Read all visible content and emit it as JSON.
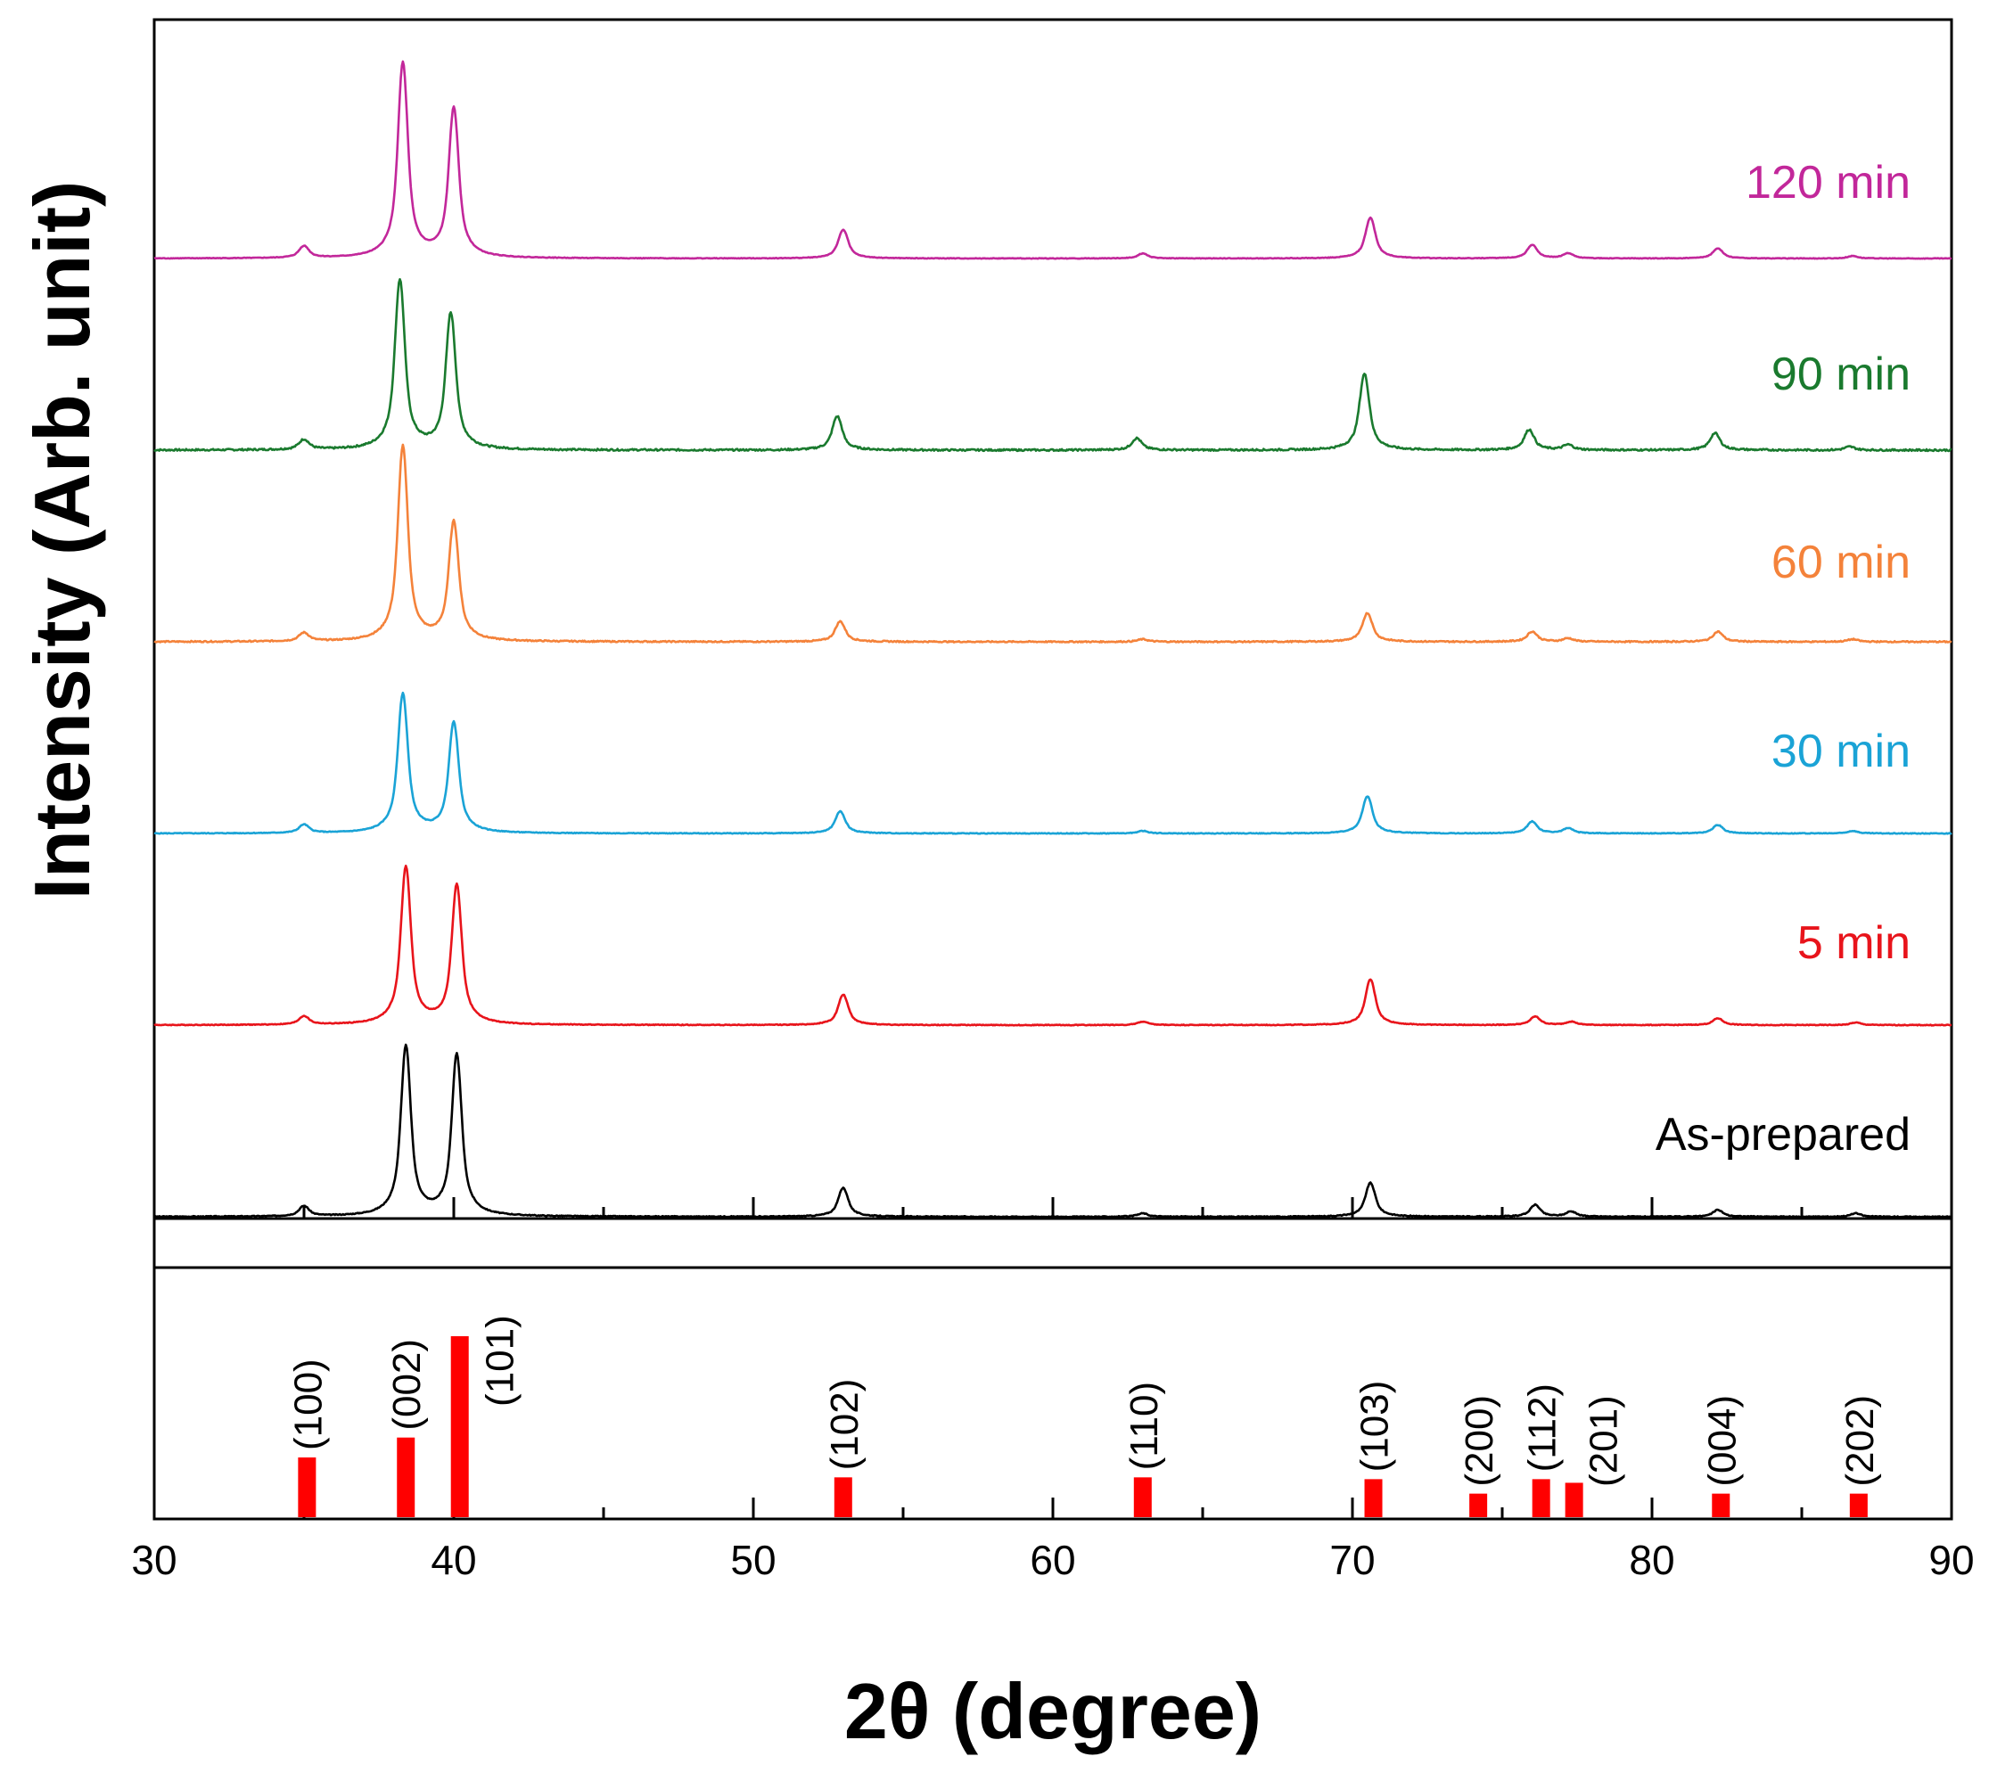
{
  "chart_data": {
    "type": "line",
    "xlabel": "2θ (degree)",
    "ylabel": "Intensity (Arb. unit)",
    "xlim": [
      30,
      90
    ],
    "x_ticks": [
      30,
      40,
      50,
      60,
      70,
      80,
      90
    ],
    "x_tick_labels": [
      "30",
      "40",
      "50",
      "60",
      "70",
      "80",
      "90"
    ],
    "series": [
      {
        "name": "As-prepared",
        "color": "#000000",
        "offset": 0,
        "noise": 0.18,
        "peaks": [
          [
            35.0,
            0.06
          ],
          [
            38.4,
            1.0
          ],
          [
            40.1,
            0.95
          ],
          [
            53.0,
            0.17
          ],
          [
            63.0,
            0.02
          ],
          [
            70.6,
            0.2
          ],
          [
            76.1,
            0.07
          ],
          [
            77.3,
            0.03
          ],
          [
            82.2,
            0.04
          ],
          [
            86.8,
            0.02
          ]
        ]
      },
      {
        "name": "5 min",
        "color": "#e8141b",
        "offset": 1,
        "noise": 0.15,
        "peaks": [
          [
            35.0,
            0.05
          ],
          [
            38.4,
            0.93
          ],
          [
            40.1,
            0.82
          ],
          [
            53.0,
            0.18
          ],
          [
            63.0,
            0.02
          ],
          [
            70.6,
            0.27
          ],
          [
            76.1,
            0.05
          ],
          [
            77.3,
            0.02
          ],
          [
            82.2,
            0.04
          ],
          [
            86.8,
            0.015
          ]
        ]
      },
      {
        "name": "30 min",
        "color": "#1aa3d6",
        "offset": 2,
        "noise": 0.15,
        "peaks": [
          [
            35.0,
            0.05
          ],
          [
            38.3,
            0.82
          ],
          [
            40.0,
            0.65
          ],
          [
            52.9,
            0.13
          ],
          [
            63.0,
            0.015
          ],
          [
            70.5,
            0.22
          ],
          [
            76.0,
            0.07
          ],
          [
            77.2,
            0.03
          ],
          [
            82.2,
            0.05
          ],
          [
            86.7,
            0.015
          ]
        ]
      },
      {
        "name": "60 min",
        "color": "#f4823a",
        "offset": 3,
        "noise": 0.25,
        "peaks": [
          [
            35.0,
            0.05
          ],
          [
            38.3,
            1.15
          ],
          [
            40.0,
            0.7
          ],
          [
            52.9,
            0.12
          ],
          [
            63.0,
            0.015
          ],
          [
            70.5,
            0.17
          ],
          [
            76.0,
            0.06
          ],
          [
            77.2,
            0.02
          ],
          [
            82.2,
            0.06
          ],
          [
            86.7,
            0.015
          ]
        ]
      },
      {
        "name": "90 min",
        "color": "#1a7a2e",
        "offset": 4,
        "noise": 0.35,
        "peaks": [
          [
            35.0,
            0.06
          ],
          [
            38.2,
            1.0
          ],
          [
            39.9,
            0.8
          ],
          [
            52.8,
            0.2
          ],
          [
            62.8,
            0.07
          ],
          [
            70.4,
            0.45
          ],
          [
            75.9,
            0.12
          ],
          [
            77.2,
            0.03
          ],
          [
            82.1,
            0.1
          ],
          [
            86.6,
            0.02
          ]
        ]
      },
      {
        "name": "120 min",
        "color": "#c2279a",
        "offset": 5,
        "noise": 0.12,
        "peaks": [
          [
            35.0,
            0.07
          ],
          [
            38.3,
            1.15
          ],
          [
            40.0,
            0.88
          ],
          [
            53.0,
            0.17
          ],
          [
            63.0,
            0.03
          ],
          [
            70.6,
            0.24
          ],
          [
            76.0,
            0.08
          ],
          [
            77.2,
            0.03
          ],
          [
            82.2,
            0.06
          ],
          [
            86.7,
            0.015
          ]
        ]
      }
    ],
    "reference": {
      "color": "#ff0000",
      "peaks": [
        {
          "x": 35.1,
          "height": 0.33,
          "label": "(100)"
        },
        {
          "x": 38.4,
          "height": 0.44,
          "label": "(002)"
        },
        {
          "x": 40.2,
          "height": 1.0,
          "label": "(101)"
        },
        {
          "x": 53.0,
          "height": 0.22,
          "label": "(102)"
        },
        {
          "x": 63.0,
          "height": 0.22,
          "label": "(110)"
        },
        {
          "x": 70.7,
          "height": 0.21,
          "label": "(103)"
        },
        {
          "x": 74.2,
          "height": 0.13,
          "label": "(200)"
        },
        {
          "x": 76.3,
          "height": 0.21,
          "label": "(112)"
        },
        {
          "x": 77.4,
          "height": 0.19,
          "label": "(201)"
        },
        {
          "x": 82.3,
          "height": 0.13,
          "label": "(004)"
        },
        {
          "x": 86.9,
          "height": 0.13,
          "label": "(202)"
        }
      ]
    }
  }
}
